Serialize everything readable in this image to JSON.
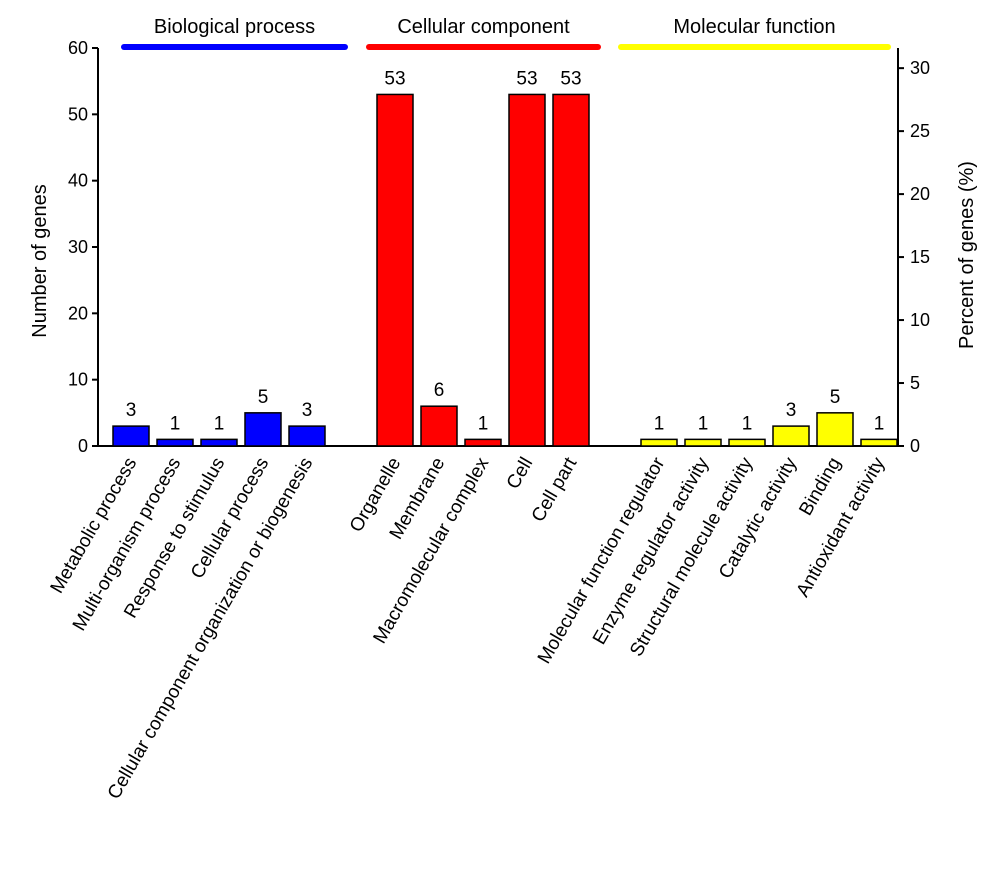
{
  "chart_data": {
    "type": "bar",
    "ylabel": "Number of genes",
    "y2label": "Percent of genes (%)",
    "ylim": [
      0,
      60
    ],
    "yticks": [
      0,
      10,
      20,
      30,
      40,
      50,
      60
    ],
    "y2lim": [
      0,
      31.6
    ],
    "y2ticks": [
      0,
      5,
      10,
      15,
      20,
      25,
      30
    ],
    "groups": [
      {
        "name": "Biological process",
        "color": "#0000ff",
        "categories": [
          "Metabolic process",
          "Multi-organism process",
          "Response to stimulus",
          "Cellular process",
          "Cellular component organization or biogenesis"
        ],
        "values": [
          3,
          1,
          1,
          5,
          3
        ]
      },
      {
        "name": "Cellular component",
        "color": "#ff0000",
        "categories": [
          "Organelle",
          "Membrane",
          "Macromolecular complex",
          "Cell",
          "Cell part"
        ],
        "values": [
          53,
          6,
          1,
          53,
          53
        ]
      },
      {
        "name": "Molecular function",
        "color": "#ffff00",
        "categories": [
          "Molecular function regulator",
          "Enzyme regulator activity",
          "Structural molecule activity",
          "Catalytic activity",
          "Binding",
          "Antioxidant activity"
        ],
        "values": [
          1,
          1,
          1,
          3,
          5,
          1
        ]
      }
    ]
  }
}
